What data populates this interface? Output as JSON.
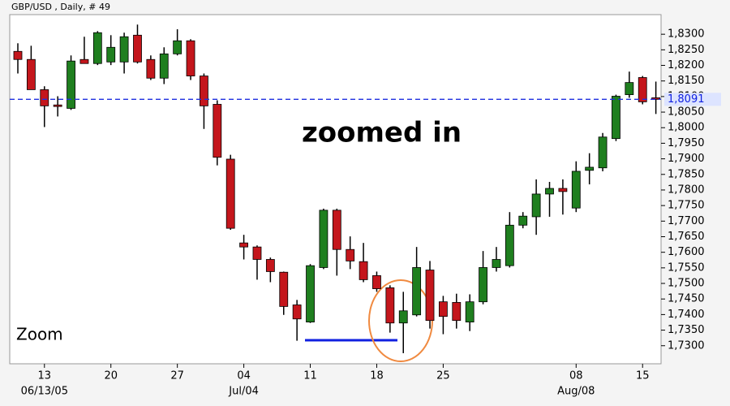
{
  "chart_data": {
    "type": "candlestick",
    "title": "GBP/USD , Daily, # 49",
    "annotation": "zoomed in",
    "zoom_label": "Zoom",
    "up_color": "#1f7f1f",
    "down_color": "#c4161c",
    "categories": [
      null,
      null,
      "13",
      null,
      null,
      null,
      null,
      "20",
      null,
      null,
      null,
      null,
      "27",
      null,
      null,
      null,
      null,
      "04",
      null,
      null,
      null,
      null,
      "11",
      null,
      null,
      null,
      null,
      "18",
      null,
      null,
      null,
      null,
      "25",
      null,
      null,
      null,
      null,
      null,
      null,
      null,
      null,
      null,
      "08",
      null,
      null,
      null,
      null,
      "15",
      null
    ],
    "date_labels": [
      null,
      null,
      "06/13/05",
      null,
      null,
      null,
      null,
      null,
      null,
      null,
      null,
      null,
      null,
      null,
      null,
      null,
      null,
      "Jul/04",
      null,
      null,
      null,
      null,
      null,
      null,
      null,
      null,
      null,
      null,
      null,
      null,
      null,
      null,
      null,
      null,
      null,
      null,
      null,
      null,
      null,
      null,
      null,
      null,
      "Aug/08",
      null,
      null,
      null,
      null,
      null,
      null
    ],
    "open": [
      1.8245,
      1.8219,
      1.8122,
      1.8073,
      1.8062,
      1.8219,
      1.8206,
      1.8211,
      1.8211,
      1.8297,
      1.8219,
      1.8159,
      1.8237,
      1.8279,
      1.8166,
      1.8075,
      1.7899,
      1.763,
      1.7617,
      1.7577,
      1.7536,
      1.7431,
      1.7376,
      1.7551,
      1.7735,
      1.7609,
      1.757,
      1.7525,
      1.7486,
      1.7373,
      1.7399,
      1.7543,
      1.7441,
      1.7439,
      1.7376,
      1.7441,
      1.7551,
      1.7557,
      1.7687,
      1.7714,
      1.7787,
      1.7805,
      1.7742,
      1.7863,
      1.7871,
      1.7965,
      1.8106,
      1.8161,
      1.8096
    ],
    "high": [
      1.8271,
      1.8263,
      1.8133,
      1.8101,
      1.8232,
      1.8292,
      1.831,
      1.8297,
      1.8305,
      1.8331,
      1.8232,
      1.8258,
      1.8316,
      1.8284,
      1.8174,
      1.8088,
      1.7913,
      1.7656,
      1.7622,
      1.7583,
      1.7538,
      1.7447,
      1.7562,
      1.774,
      1.774,
      1.7651,
      1.763,
      1.7538,
      1.7494,
      1.7473,
      1.7617,
      1.7572,
      1.746,
      1.7467,
      1.7465,
      1.7604,
      1.7617,
      1.7729,
      1.7729,
      1.7834,
      1.7826,
      1.7834,
      1.7892,
      1.7918,
      1.7983,
      1.8106,
      1.818,
      1.8166,
      1.8148
    ],
    "low": [
      1.8174,
      1.8122,
      1.8002,
      1.8036,
      1.8057,
      1.8206,
      1.8201,
      1.8201,
      1.8174,
      1.8206,
      1.8153,
      1.814,
      1.8232,
      1.8153,
      1.7996,
      1.7879,
      1.7672,
      1.7577,
      1.7512,
      1.7504,
      1.7399,
      1.7316,
      1.7373,
      1.7546,
      1.7525,
      1.7546,
      1.7504,
      1.7473,
      1.7342,
      1.7276,
      1.7394,
      1.7355,
      1.7337,
      1.7355,
      1.7347,
      1.7433,
      1.7538,
      1.7551,
      1.7677,
      1.7656,
      1.7714,
      1.7721,
      1.7729,
      1.7818,
      1.786,
      1.7957,
      1.8096,
      1.8075,
      1.8044
    ],
    "close": [
      1.8219,
      1.8122,
      1.807,
      1.8068,
      1.8214,
      1.8206,
      1.8305,
      1.8258,
      1.8292,
      1.8211,
      1.8159,
      1.8237,
      1.8279,
      1.8166,
      1.807,
      1.7905,
      1.7677,
      1.7617,
      1.7577,
      1.7538,
      1.7426,
      1.7386,
      1.7557,
      1.7735,
      1.7609,
      1.7572,
      1.7512,
      1.7483,
      1.7373,
      1.7412,
      1.7551,
      1.7381,
      1.7394,
      1.7381,
      1.7441,
      1.7551,
      1.7577,
      1.7687,
      1.7716,
      1.7787,
      1.7805,
      1.7795,
      1.786,
      1.7873,
      1.797,
      1.8101,
      1.8145,
      1.8083,
      1.8091
    ],
    "current_price": {
      "value": 1.8091,
      "label": "1,8091"
    },
    "ylim": [
      1.7242,
      1.8363
    ],
    "yticks": [
      {
        "value": 1.73,
        "label": "1,7300"
      },
      {
        "value": 1.735,
        "label": "1,7350"
      },
      {
        "value": 1.74,
        "label": "1,7400"
      },
      {
        "value": 1.745,
        "label": "1,7450"
      },
      {
        "value": 1.75,
        "label": "1,7500"
      },
      {
        "value": 1.755,
        "label": "1,7550"
      },
      {
        "value": 1.76,
        "label": "1,7600"
      },
      {
        "value": 1.765,
        "label": "1,7650"
      },
      {
        "value": 1.77,
        "label": "1,7700"
      },
      {
        "value": 1.775,
        "label": "1,7750"
      },
      {
        "value": 1.78,
        "label": "1,7800"
      },
      {
        "value": 1.785,
        "label": "1,7850"
      },
      {
        "value": 1.79,
        "label": "1,7900"
      },
      {
        "value": 1.795,
        "label": "1,7950"
      },
      {
        "value": 1.8,
        "label": "1,8000"
      },
      {
        "value": 1.805,
        "label": "1,8050"
      },
      {
        "value": 1.81,
        "label": "1,8100"
      },
      {
        "value": 1.815,
        "label": "1,8150"
      },
      {
        "value": 1.82,
        "label": "1,8200"
      },
      {
        "value": 1.825,
        "label": "1,8250"
      },
      {
        "value": 1.83,
        "label": "1,8300"
      }
    ]
  }
}
